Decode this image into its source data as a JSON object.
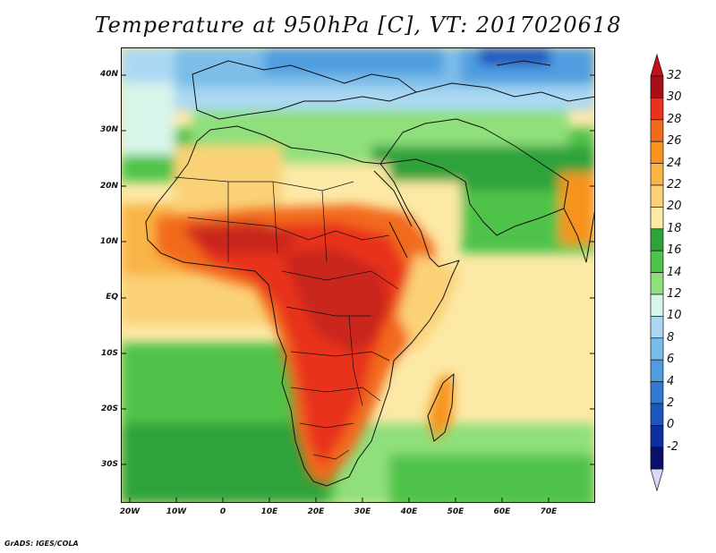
{
  "title": "Temperature at 950hPa [C], VT: 2017020618",
  "footer": "GrADS: IGES/COLA",
  "map": {
    "lat_labels": [
      "40N",
      "30N",
      "20N",
      "10N",
      "EQ",
      "10S",
      "20S",
      "30S"
    ],
    "lon_labels": [
      "20W",
      "10W",
      "0",
      "10E",
      "20E",
      "30E",
      "40E",
      "50E",
      "60E",
      "70E"
    ],
    "lon_range": [
      -22,
      80
    ],
    "lat_range": [
      -37,
      45
    ]
  },
  "colorbar": {
    "labels": [
      "32",
      "30",
      "28",
      "26",
      "24",
      "22",
      "20",
      "18",
      "16",
      "14",
      "12",
      "10",
      "8",
      "6",
      "4",
      "2",
      "0",
      "-2"
    ],
    "colors": [
      "#a50f15",
      "#e8321e",
      "#f26a1b",
      "#f7931e",
      "#f9b446",
      "#fbd177",
      "#fce9a6",
      "#2ea33b",
      "#4fc34a",
      "#8fdf7c",
      "#d8f5ea",
      "#aad8f3",
      "#7bbde9",
      "#4f9de0",
      "#2e7bd1",
      "#1c56bd",
      "#0d2fa0",
      "#08106a"
    ],
    "top_arrow_color": "#c4111c",
    "bottom_arrow_color": "#d8d8f8"
  }
}
